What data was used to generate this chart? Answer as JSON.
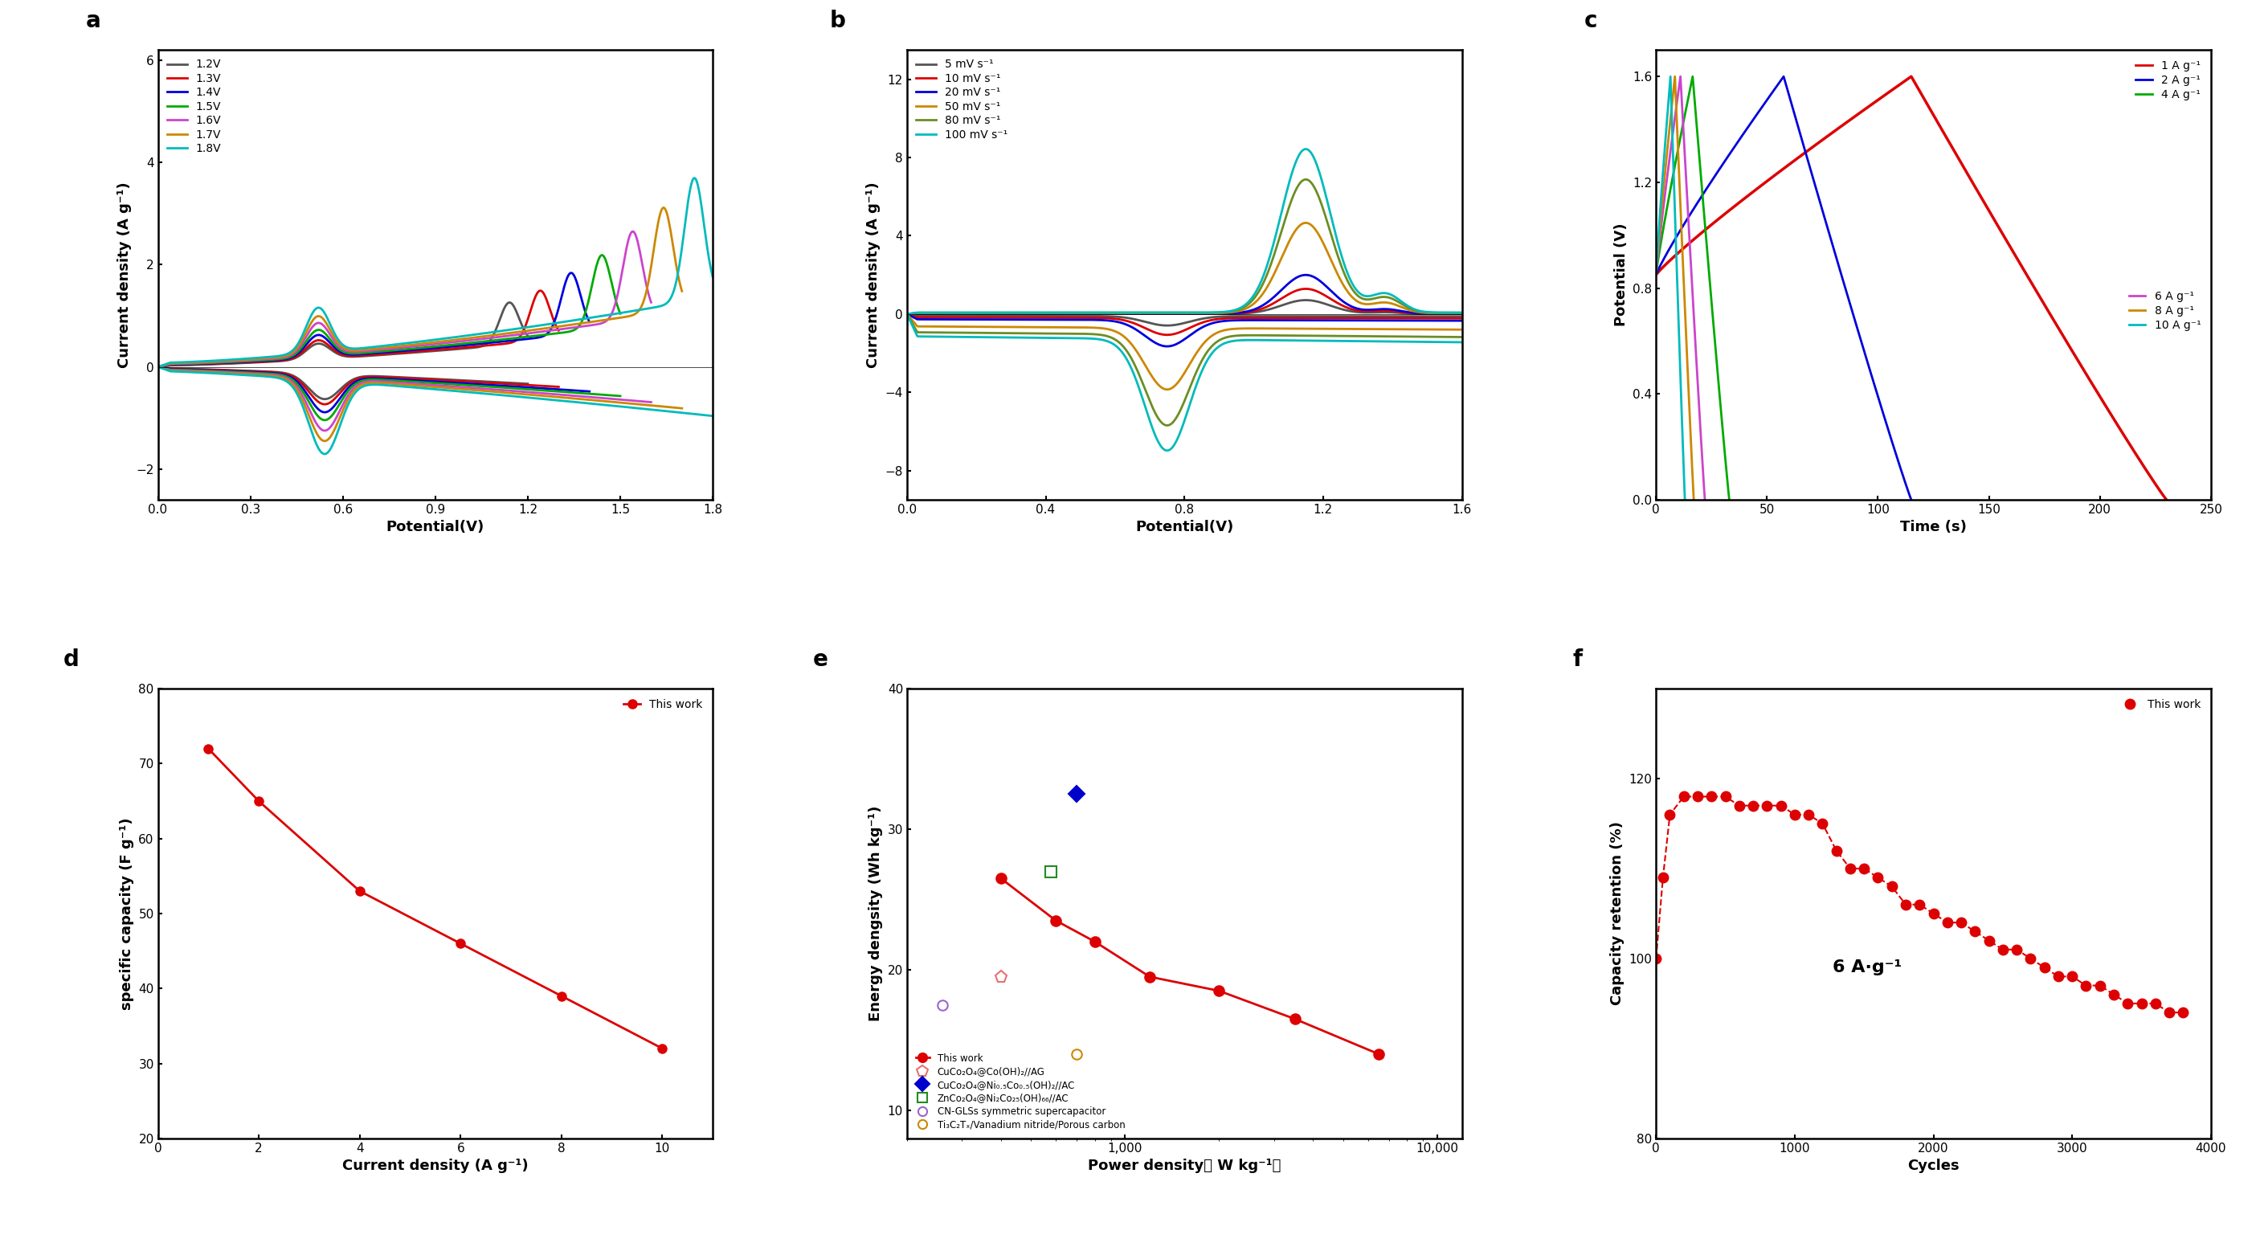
{
  "fig_width": 28.08,
  "fig_height": 15.57,
  "panel_a": {
    "label": "a",
    "xlabel": "Potential(V)",
    "ylabel": "Current density (A g⁻¹)",
    "xlim": [
      0.0,
      1.8
    ],
    "ylim": [
      -2.6,
      6.2
    ],
    "xticks": [
      0.0,
      0.3,
      0.6,
      0.9,
      1.2,
      1.5,
      1.8
    ],
    "yticks": [
      -2,
      0,
      2,
      4,
      6
    ],
    "curves": [
      {
        "label": "1.2V",
        "color": "#555555",
        "vmax": 1.2,
        "scale": 0.55
      },
      {
        "label": "1.3V",
        "color": "#dd0000",
        "vmax": 1.3,
        "scale": 0.65
      },
      {
        "label": "1.4V",
        "color": "#0000dd",
        "vmax": 1.4,
        "scale": 0.8
      },
      {
        "label": "1.5V",
        "color": "#00aa00",
        "vmax": 1.5,
        "scale": 0.95
      },
      {
        "label": "1.6V",
        "color": "#cc44cc",
        "vmax": 1.6,
        "scale": 1.15
      },
      {
        "label": "1.7V",
        "color": "#cc8800",
        "vmax": 1.7,
        "scale": 1.35
      },
      {
        "label": "1.8V",
        "color": "#00bbbb",
        "vmax": 1.8,
        "scale": 1.6
      }
    ]
  },
  "panel_b": {
    "label": "b",
    "xlabel": "Potential(V)",
    "ylabel": "Current density (A g⁻¹)",
    "xlim": [
      0.0,
      1.6
    ],
    "ylim": [
      -9.5,
      13.5
    ],
    "xticks": [
      0.0,
      0.4,
      0.8,
      1.2,
      1.6
    ],
    "yticks": [
      -8,
      -4,
      0,
      4,
      8,
      12
    ],
    "curves": [
      {
        "label": "5 mV s⁻¹",
        "color": "#555555",
        "scale": 0.32
      },
      {
        "label": "10 mV s⁻¹",
        "color": "#dd0000",
        "scale": 0.58
      },
      {
        "label": "20 mV s⁻¹",
        "color": "#0000dd",
        "scale": 0.9
      },
      {
        "label": "50 mV s⁻¹",
        "color": "#cc8800",
        "scale": 2.1
      },
      {
        "label": "80 mV s⁻¹",
        "color": "#6b8e23",
        "scale": 3.1
      },
      {
        "label": "100 mV s⁻¹",
        "color": "#00bbbb",
        "scale": 3.8
      }
    ]
  },
  "panel_c": {
    "label": "c",
    "xlabel": "Time (s)",
    "ylabel": "Potential (V)",
    "xlim": [
      0,
      250
    ],
    "ylim": [
      0.0,
      1.7
    ],
    "xticks": [
      0,
      50,
      100,
      150,
      200,
      250
    ],
    "yticks": [
      0.0,
      0.4,
      0.8,
      1.2,
      1.6
    ],
    "curves": [
      {
        "label": "1 A g⁻¹",
        "color": "#dd0000",
        "t_end": 230
      },
      {
        "label": "2 A g⁻¹",
        "color": "#0000dd",
        "t_end": 115
      },
      {
        "label": "4 A g⁻¹",
        "color": "#00aa00",
        "t_end": 33
      },
      {
        "label": "6 A g⁻¹",
        "color": "#cc44cc",
        "t_end": 22
      },
      {
        "label": "8 A g⁻¹",
        "color": "#cc8800",
        "t_end": 17
      },
      {
        "label": "10 A g⁻¹",
        "color": "#00bbbb",
        "t_end": 13
      }
    ]
  },
  "panel_d": {
    "label": "d",
    "xlabel": "Current density (A g⁻¹)",
    "ylabel": "specific capacity (F g⁻¹)",
    "xlim": [
      0,
      11
    ],
    "ylim": [
      20,
      80
    ],
    "xticks": [
      0,
      2,
      4,
      6,
      8,
      10
    ],
    "yticks": [
      20,
      30,
      40,
      50,
      60,
      70,
      80
    ],
    "x": [
      1,
      2,
      4,
      6,
      8,
      10
    ],
    "y": [
      72,
      65,
      53,
      46,
      39,
      32
    ],
    "line_color": "#dd0000",
    "legend_label": "This work"
  },
  "panel_e": {
    "label": "e",
    "xlabel": "Power density（ W kg⁻¹）",
    "ylabel": "Energy dengsity (Wh kg⁻¹)",
    "xlim": [
      200,
      12000
    ],
    "ylim": [
      8,
      40
    ],
    "yticks": [
      10,
      20,
      30,
      40
    ],
    "series": [
      {
        "label": "This work",
        "color": "#dd0000",
        "marker": "o",
        "filled": true,
        "x": [
          400,
          600,
          800,
          1200,
          2000,
          3500,
          6500
        ],
        "y": [
          26.5,
          23.5,
          22.0,
          19.5,
          18.5,
          16.5,
          14.0
        ],
        "lw": 2.0
      },
      {
        "label": "CuCo₂O₄@Co(OH)₂//AG",
        "color": "#e87070",
        "marker": "p",
        "filled": false,
        "x": [
          400
        ],
        "y": [
          19.5
        ],
        "lw": 0
      },
      {
        "label": "CuCo₂O₄@Ni₀.₅Co₀.₅(OH)₂//AC",
        "color": "#0000cc",
        "marker": "D",
        "filled": true,
        "x": [
          700
        ],
        "y": [
          32.5
        ],
        "lw": 0
      },
      {
        "label": "ZnCo₂O₄@Ni₂Co₂₅(OH)₆₆//AC",
        "color": "#228B22",
        "marker": "s",
        "filled": false,
        "x": [
          580
        ],
        "y": [
          27.0
        ],
        "lw": 0
      },
      {
        "label": "CN-GLSs symmetric supercapacitor",
        "color": "#9966cc",
        "marker": "o",
        "filled": false,
        "x": [
          260
        ],
        "y": [
          17.5
        ],
        "lw": 0
      },
      {
        "label": "Ti₃C₂Tₓ/Vanadium nitride/Porous carbon",
        "color": "#cc8800",
        "marker": "o",
        "filled": false,
        "x": [
          700
        ],
        "y": [
          14.0
        ],
        "lw": 0
      }
    ]
  },
  "panel_f": {
    "label": "f",
    "xlabel": "Cycles",
    "ylabel": "Capacity retention (%)",
    "xlim": [
      0,
      4000
    ],
    "ylim": [
      80,
      130
    ],
    "xticks": [
      0,
      1000,
      2000,
      3000,
      4000
    ],
    "yticks": [
      80,
      100,
      120
    ],
    "annotation": "6 A·g⁻¹",
    "line_color": "#dd0000",
    "legend_label": "This work",
    "x": [
      0,
      50,
      100,
      200,
      300,
      400,
      500,
      600,
      700,
      800,
      900,
      1000,
      1100,
      1200,
      1300,
      1400,
      1500,
      1600,
      1700,
      1800,
      1900,
      2000,
      2100,
      2200,
      2300,
      2400,
      2500,
      2600,
      2700,
      2800,
      2900,
      3000,
      3100,
      3200,
      3300,
      3400,
      3500,
      3600,
      3700,
      3800
    ],
    "y": [
      100,
      109,
      116,
      118,
      118,
      118,
      118,
      117,
      117,
      117,
      117,
      116,
      116,
      115,
      112,
      110,
      110,
      109,
      108,
      106,
      106,
      105,
      104,
      104,
      103,
      102,
      101,
      101,
      100,
      99,
      98,
      98,
      97,
      97,
      96,
      95,
      95,
      95,
      94,
      94
    ]
  }
}
